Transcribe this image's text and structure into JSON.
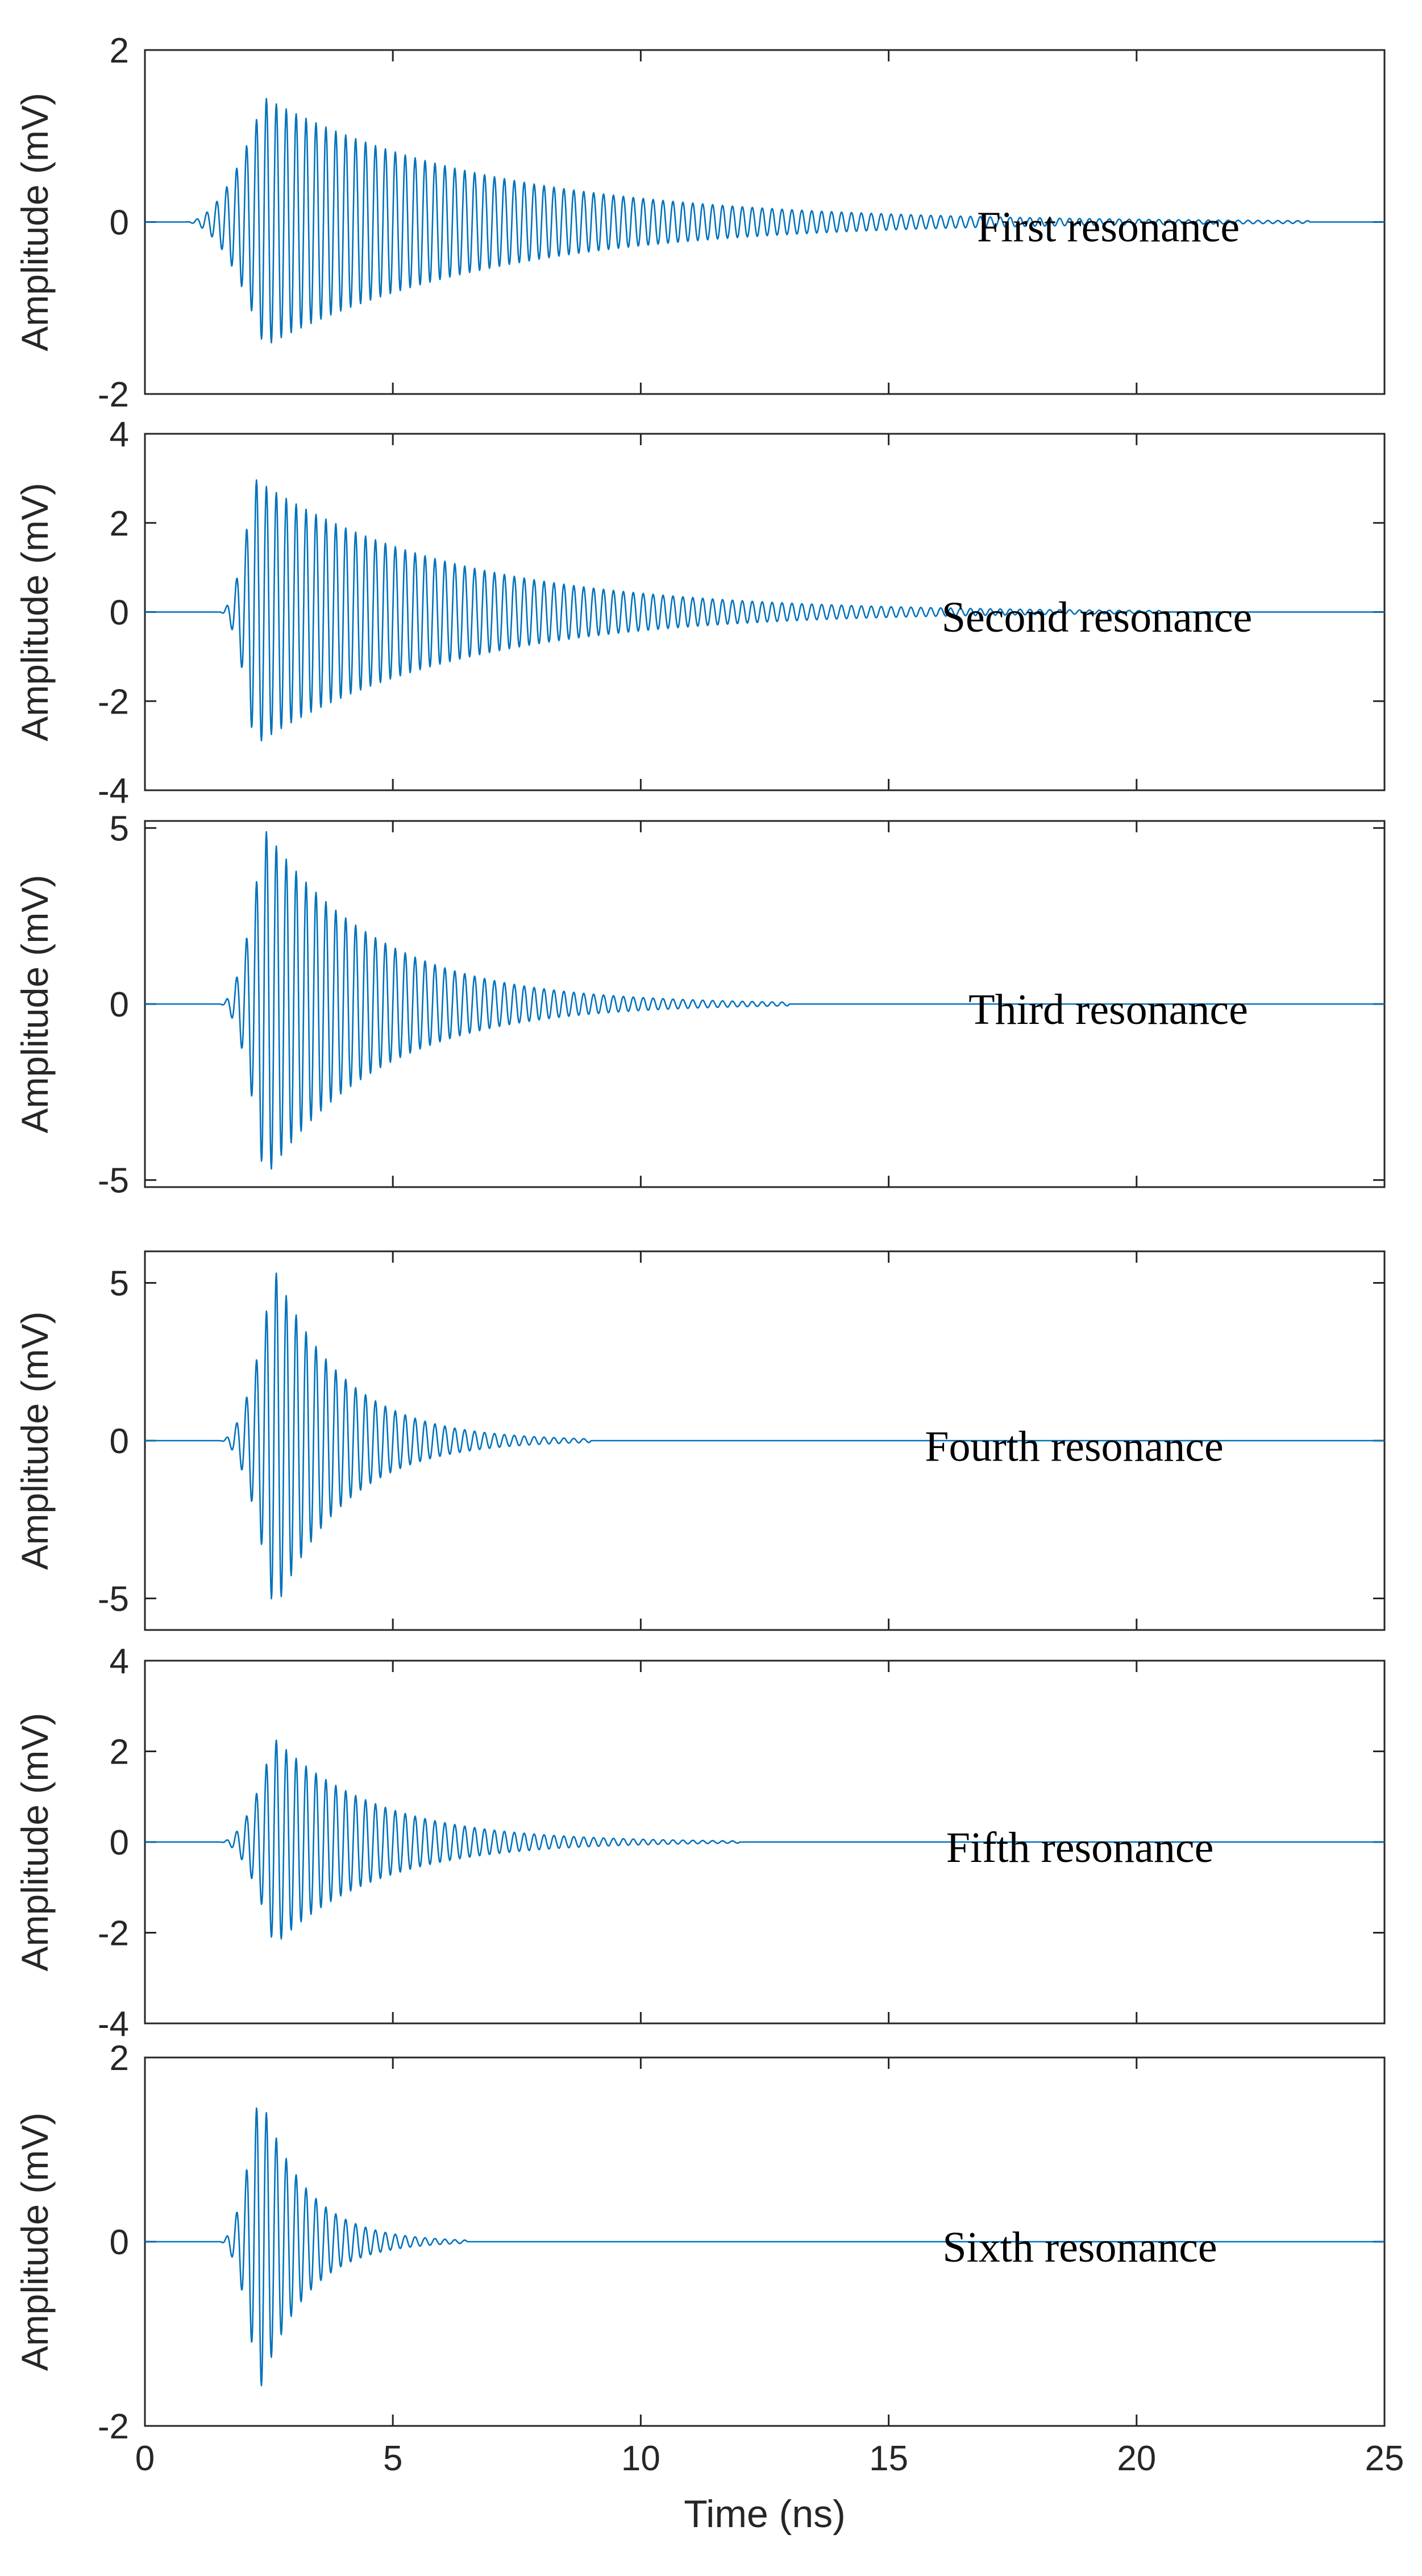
{
  "figure": {
    "xlabel": "Time (ns)",
    "xlim": [
      0,
      25
    ],
    "xticks": [
      0,
      5,
      10,
      15,
      20,
      25
    ],
    "series_color": "#0072BD"
  },
  "chart_data": [
    {
      "type": "line",
      "title": "",
      "label": "First resonance",
      "xlabel": "",
      "ylabel": "Amplitude (mV)",
      "xlim": [
        0,
        25
      ],
      "ylim": [
        -2,
        2
      ],
      "yticks": [
        -2,
        0,
        2
      ],
      "show_xticklabels": false,
      "signal": {
        "onset_ns": 0.8,
        "peak_time_ns": 2.4,
        "peak_amplitude_mV": 1.45,
        "end_time_ns": 23.5,
        "period_ns": 0.2
      }
    },
    {
      "type": "line",
      "title": "",
      "label": "Second resonance",
      "xlabel": "",
      "ylabel": "Amplitude (mV)",
      "xlim": [
        0,
        25
      ],
      "ylim": [
        -4,
        4
      ],
      "yticks": [
        -4,
        -2,
        0,
        2,
        4
      ],
      "show_xticklabels": false,
      "signal": {
        "onset_ns": 1.5,
        "peak_time_ns": 2.2,
        "peak_amplitude_mV": 3.0,
        "end_time_ns": 20.5,
        "period_ns": 0.2
      }
    },
    {
      "type": "line",
      "title": "",
      "label": "Third resonance",
      "xlabel": "",
      "ylabel": "Amplitude (mV)",
      "xlim": [
        0,
        25
      ],
      "ylim": [
        -5.2,
        5.2
      ],
      "yticks": [
        -5,
        0,
        5
      ],
      "show_xticklabels": false,
      "signal": {
        "onset_ns": 1.5,
        "peak_time_ns": 2.4,
        "peak_amplitude_mV": 5.0,
        "end_time_ns": 13.0,
        "period_ns": 0.2
      }
    },
    {
      "type": "line",
      "title": "",
      "label": "Fourth resonance",
      "xlabel": "",
      "ylabel": "Amplitude (mV)",
      "xlim": [
        0,
        25
      ],
      "ylim": [
        -6,
        6
      ],
      "yticks": [
        -5,
        0,
        5
      ],
      "show_xticklabels": false,
      "signal": {
        "onset_ns": 1.5,
        "peak_time_ns": 2.6,
        "peak_amplitude_mV": 5.5,
        "end_time_ns": 9.0,
        "period_ns": 0.2
      }
    },
    {
      "type": "line",
      "title": "",
      "label": "Fifth resonance",
      "xlabel": "",
      "ylabel": "Amplitude (mV)",
      "xlim": [
        0,
        25
      ],
      "ylim": [
        -4,
        4
      ],
      "yticks": [
        -4,
        -2,
        0,
        2,
        4
      ],
      "show_xticklabels": false,
      "signal": {
        "onset_ns": 1.5,
        "peak_time_ns": 2.6,
        "peak_amplitude_mV": 2.3,
        "end_time_ns": 12.0,
        "period_ns": 0.2
      }
    },
    {
      "type": "line",
      "title": "",
      "label": "Sixth resonance",
      "xlabel": "Time (ns)",
      "ylabel": "Amplitude (mV)",
      "xlim": [
        0,
        25
      ],
      "ylim": [
        -2,
        2
      ],
      "yticks": [
        -2,
        0,
        2
      ],
      "show_xticklabels": true,
      "signal": {
        "onset_ns": 1.5,
        "peak_time_ns": 2.3,
        "peak_amplitude_mV": 1.65,
        "end_time_ns": 6.5,
        "period_ns": 0.2
      }
    }
  ]
}
